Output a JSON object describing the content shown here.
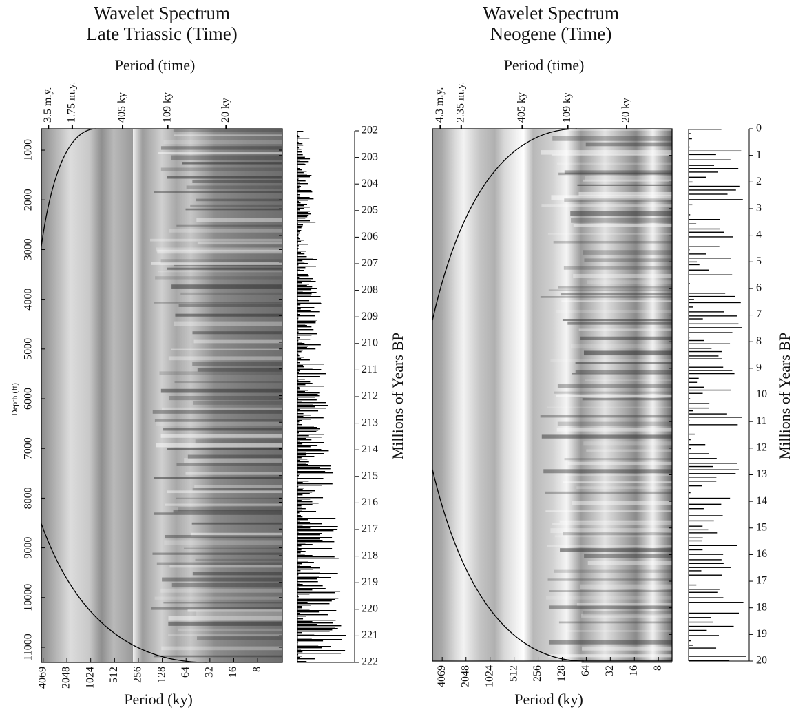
{
  "chart_data": [
    {
      "type": "wavelet",
      "title": "Wavelet Spectrum",
      "subtitle": "Late Triassic (Time)",
      "x2label": "Period (time)",
      "xlabel": "Period (ky)",
      "xlog": true,
      "xlim": [
        4300,
        3.9
      ],
      "xticks": [
        4069,
        2048,
        1024,
        512,
        256,
        128,
        64,
        32,
        16,
        8
      ],
      "x2ticks": [
        {
          "value": 3500,
          "label": "3.5 m.y."
        },
        {
          "value": 1750,
          "label": "1.75 m.y."
        },
        {
          "value": 405,
          "label": "405 ky"
        },
        {
          "value": 109,
          "label": "109 ky"
        },
        {
          "value": 20,
          "label": "20 ky"
        }
      ],
      "ylabel": "Depth (ft)",
      "ylim": [
        570,
        11305
      ],
      "yticks": [
        1000,
        2000,
        3000,
        4000,
        5000,
        6000,
        7000,
        8000,
        9000,
        10000,
        11000
      ],
      "y2label": "Millions of Years BP",
      "y2lim": [
        202,
        222
      ],
      "y2ticks": [
        202,
        203,
        204,
        205,
        206,
        207,
        208,
        209,
        210,
        211,
        212,
        213,
        214,
        215,
        216,
        217,
        218,
        219,
        220,
        221,
        222
      ]
    },
    {
      "type": "wavelet",
      "title": "Wavelet Spectrum",
      "subtitle": "Neogene (Time)",
      "x2label": "Period (time)",
      "xlabel": "Period (ky)",
      "xlog": true,
      "xlim": [
        5390,
        5.4
      ],
      "xticks": [
        4069,
        2048,
        1024,
        512,
        256,
        128,
        64,
        32,
        16,
        8
      ],
      "x2ticks": [
        {
          "value": 4300,
          "label": "4.3 m.y."
        },
        {
          "value": 2350,
          "label": "2.35 m.y."
        },
        {
          "value": 405,
          "label": "405 ky"
        },
        {
          "value": 109,
          "label": "109 ky"
        },
        {
          "value": 20,
          "label": "20 ky"
        }
      ],
      "y2label": "Millions of Years BP",
      "y2lim": [
        0,
        20
      ],
      "y2ticks": [
        0,
        1,
        2,
        3,
        4,
        5,
        6,
        7,
        8,
        9,
        10,
        11,
        12,
        13,
        14,
        15,
        16,
        17,
        18,
        19,
        20
      ]
    }
  ]
}
